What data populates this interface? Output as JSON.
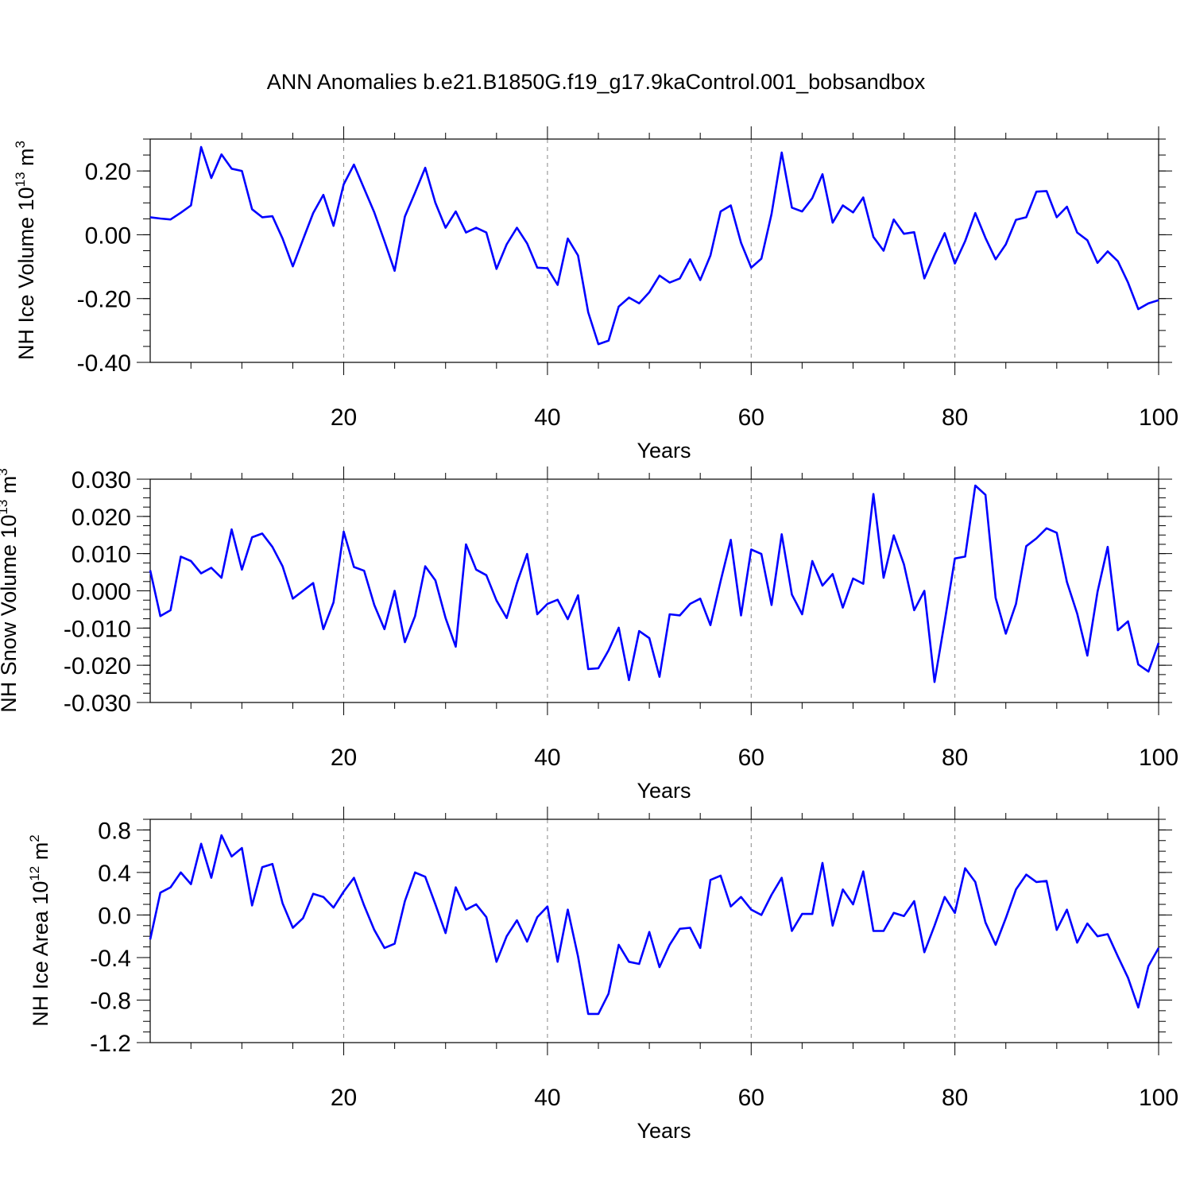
{
  "title": "ANN Anomalies b.e21.B1850G.f19_g17.9kaControl.001_bobsandbox",
  "style": {
    "line_color": "#0000ff",
    "grid_color": "#888888"
  },
  "chart_data": [
    {
      "type": "line",
      "ylabel": {
        "main": "NH Ice Volume 10",
        "sup": "13",
        "mid": " m",
        "sup2": "3"
      },
      "xlabel": "Years",
      "xlim": [
        1,
        100
      ],
      "ylim": [
        -0.4,
        0.3
      ],
      "xticks": [
        20,
        40,
        60,
        80,
        100
      ],
      "yticks": [
        -0.4,
        -0.2,
        0.0,
        0.2
      ],
      "ytick_labels": [
        "-0.40",
        "-0.20",
        "0.00",
        "0.20"
      ],
      "yminor_step": 0.05,
      "grid": "vertical dashed at major x ticks",
      "x": [
        1,
        2,
        3,
        4,
        5,
        6,
        7,
        8,
        9,
        10,
        11,
        12,
        13,
        14,
        15,
        16,
        17,
        18,
        19,
        20,
        21,
        22,
        23,
        24,
        25,
        26,
        27,
        28,
        29,
        30,
        31,
        32,
        33,
        34,
        35,
        36,
        37,
        38,
        39,
        40,
        41,
        42,
        43,
        44,
        45,
        46,
        47,
        48,
        49,
        50,
        51,
        52,
        53,
        54,
        55,
        56,
        57,
        58,
        59,
        60,
        61,
        62,
        63,
        64,
        65,
        66,
        67,
        68,
        69,
        70,
        71,
        72,
        73,
        74,
        75,
        76,
        77,
        78,
        79,
        80,
        81,
        82,
        83,
        84,
        85,
        86,
        87,
        88,
        89,
        90,
        91,
        92,
        93,
        94,
        95,
        96,
        97,
        98,
        99,
        100
      ],
      "values": [
        0.055,
        0.051,
        0.048,
        0.069,
        0.092,
        0.275,
        0.178,
        0.252,
        0.207,
        0.2,
        0.08,
        0.055,
        0.058,
        -0.012,
        -0.099,
        -0.015,
        0.068,
        0.125,
        0.028,
        0.158,
        0.22,
        0.145,
        0.07,
        -0.02,
        -0.113,
        0.057,
        0.132,
        0.21,
        0.1,
        0.022,
        0.073,
        0.007,
        0.022,
        0.007,
        -0.107,
        -0.03,
        0.022,
        -0.027,
        -0.103,
        -0.105,
        -0.157,
        -0.012,
        -0.065,
        -0.243,
        -0.343,
        -0.332,
        -0.225,
        -0.197,
        -0.215,
        -0.18,
        -0.128,
        -0.15,
        -0.137,
        -0.077,
        -0.142,
        -0.065,
        0.073,
        0.092,
        -0.025,
        -0.103,
        -0.075,
        0.065,
        0.258,
        0.085,
        0.073,
        0.115,
        0.19,
        0.038,
        0.092,
        0.07,
        0.117,
        -0.007,
        -0.05,
        0.048,
        0.003,
        0.008,
        -0.137,
        -0.063,
        0.005,
        -0.09,
        -0.02,
        0.068,
        -0.01,
        -0.077,
        -0.03,
        0.047,
        0.055,
        0.135,
        0.137,
        0.055,
        0.088,
        0.007,
        -0.017,
        -0.088,
        -0.052,
        -0.083,
        -0.15,
        -0.233,
        -0.215,
        -0.205
      ]
    },
    {
      "type": "line",
      "ylabel": {
        "main": "NH Snow Volume 10",
        "sup": "13",
        "mid": " m",
        "sup2": "3"
      },
      "xlabel": "Years",
      "xlim": [
        1,
        100
      ],
      "ylim": [
        -0.03,
        0.03
      ],
      "xticks": [
        20,
        40,
        60,
        80,
        100
      ],
      "yticks": [
        -0.03,
        -0.02,
        -0.01,
        0.0,
        0.01,
        0.02,
        0.03
      ],
      "ytick_labels": [
        "-0.030",
        "-0.020",
        "-0.010",
        "0.000",
        "0.010",
        "0.020",
        "0.030"
      ],
      "yminor_step": 0.0025,
      "grid": "vertical dashed at major x ticks",
      "x": [
        1,
        2,
        3,
        4,
        5,
        6,
        7,
        8,
        9,
        10,
        11,
        12,
        13,
        14,
        15,
        16,
        17,
        18,
        19,
        20,
        21,
        22,
        23,
        24,
        25,
        26,
        27,
        28,
        29,
        30,
        31,
        32,
        33,
        34,
        35,
        36,
        37,
        38,
        39,
        40,
        41,
        42,
        43,
        44,
        45,
        46,
        47,
        48,
        49,
        50,
        51,
        52,
        53,
        54,
        55,
        56,
        57,
        58,
        59,
        60,
        61,
        62,
        63,
        64,
        65,
        66,
        67,
        68,
        69,
        70,
        71,
        72,
        73,
        74,
        75,
        76,
        77,
        78,
        79,
        80,
        81,
        82,
        83,
        84,
        85,
        86,
        87,
        88,
        89,
        90,
        91,
        92,
        93,
        94,
        95,
        96,
        97,
        98,
        99,
        100
      ],
      "values": [
        0.0055,
        -0.0068,
        -0.0052,
        0.0092,
        0.008,
        0.0047,
        0.0062,
        0.0035,
        0.0165,
        0.0057,
        0.0144,
        0.0154,
        0.0118,
        0.0066,
        -0.0021,
        0.0,
        0.0021,
        -0.0103,
        -0.0031,
        0.0159,
        0.0064,
        0.0054,
        -0.0038,
        -0.0103,
        0.0,
        -0.0138,
        -0.0068,
        0.0066,
        0.0028,
        -0.0073,
        -0.015,
        0.0125,
        0.0057,
        0.0042,
        -0.0026,
        -0.0073,
        0.0021,
        0.0099,
        -0.0063,
        -0.0035,
        -0.0024,
        -0.0076,
        -0.0012,
        -0.021,
        -0.0208,
        -0.016,
        -0.0099,
        -0.024,
        -0.0108,
        -0.0127,
        -0.0231,
        -0.0063,
        -0.0066,
        -0.0035,
        -0.0021,
        -0.0092,
        0.0026,
        0.0137,
        -0.0066,
        0.0111,
        0.0099,
        -0.0038,
        0.0152,
        -0.001,
        -0.0063,
        0.008,
        0.0014,
        0.0045,
        -0.0045,
        0.0033,
        0.0019,
        0.026,
        0.0035,
        0.0149,
        0.0071,
        -0.0052,
        0.0,
        -0.0245,
        -0.0082,
        0.0087,
        0.0092,
        0.0283,
        0.0258,
        -0.0019,
        -0.0115,
        -0.0035,
        0.012,
        0.0141,
        0.0168,
        0.0156,
        0.0024,
        -0.0061,
        -0.0174,
        -0.0003,
        0.0118,
        -0.0106,
        -0.0082,
        -0.0198,
        -0.0217,
        -0.014
      ]
    },
    {
      "type": "line",
      "ylabel": {
        "main": "NH Ice Area 10",
        "sup": "12",
        "mid": " m",
        "sup2": "2"
      },
      "xlabel": "Years",
      "xlim": [
        1,
        100
      ],
      "ylim": [
        -1.2,
        0.9
      ],
      "xticks": [
        20,
        40,
        60,
        80,
        100
      ],
      "yticks": [
        -1.2,
        -0.8,
        -0.4,
        0.0,
        0.4,
        0.8
      ],
      "ytick_labels": [
        "-1.2",
        "-0.8",
        "-0.4",
        "0.0",
        "0.4",
        "0.8"
      ],
      "yminor_step": 0.1,
      "grid": "vertical dashed at major x ticks",
      "x": [
        1,
        2,
        3,
        4,
        5,
        6,
        7,
        8,
        9,
        10,
        11,
        12,
        13,
        14,
        15,
        16,
        17,
        18,
        19,
        20,
        21,
        22,
        23,
        24,
        25,
        26,
        27,
        28,
        29,
        30,
        31,
        32,
        33,
        34,
        35,
        36,
        37,
        38,
        39,
        40,
        41,
        42,
        43,
        44,
        45,
        46,
        47,
        48,
        49,
        50,
        51,
        52,
        53,
        54,
        55,
        56,
        57,
        58,
        59,
        60,
        61,
        62,
        63,
        64,
        65,
        66,
        67,
        68,
        69,
        70,
        71,
        72,
        73,
        74,
        75,
        76,
        77,
        78,
        79,
        80,
        81,
        82,
        83,
        84,
        85,
        86,
        87,
        88,
        89,
        90,
        91,
        92,
        93,
        94,
        95,
        96,
        97,
        98,
        99,
        100
      ],
      "values": [
        -0.23,
        0.21,
        0.26,
        0.4,
        0.29,
        0.67,
        0.35,
        0.75,
        0.55,
        0.63,
        0.09,
        0.45,
        0.48,
        0.11,
        -0.12,
        -0.03,
        0.2,
        0.17,
        0.07,
        0.22,
        0.35,
        0.09,
        -0.14,
        -0.31,
        -0.27,
        0.13,
        0.4,
        0.36,
        0.1,
        -0.17,
        0.26,
        0.05,
        0.1,
        -0.02,
        -0.44,
        -0.2,
        -0.05,
        -0.25,
        -0.02,
        0.08,
        -0.44,
        0.05,
        -0.39,
        -0.93,
        -0.93,
        -0.74,
        -0.28,
        -0.44,
        -0.46,
        -0.16,
        -0.49,
        -0.28,
        -0.13,
        -0.12,
        -0.31,
        0.33,
        0.37,
        0.08,
        0.17,
        0.05,
        0.0,
        0.19,
        0.35,
        -0.15,
        0.01,
        0.01,
        0.49,
        -0.1,
        0.24,
        0.1,
        0.41,
        -0.15,
        -0.15,
        0.02,
        -0.01,
        0.13,
        -0.35,
        -0.1,
        0.17,
        0.02,
        0.44,
        0.31,
        -0.07,
        -0.28,
        -0.03,
        0.24,
        0.38,
        0.31,
        0.32,
        -0.14,
        0.05,
        -0.26,
        -0.08,
        -0.2,
        -0.18,
        -0.39,
        -0.59,
        -0.87,
        -0.48,
        -0.31
      ]
    }
  ]
}
